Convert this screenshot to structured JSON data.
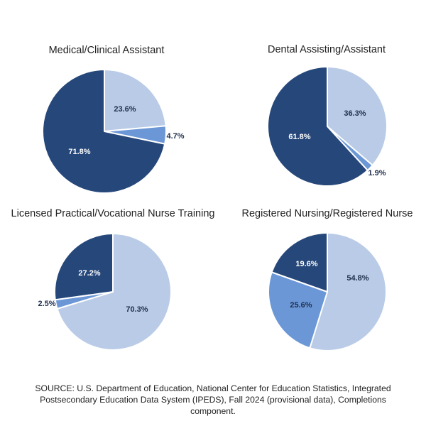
{
  "colors": {
    "dark": "#26477a",
    "light": "#b9cbe6",
    "mid": "#6b97d6"
  },
  "chart_data": [
    {
      "type": "pie",
      "title": "Medical/Clinical Assistant",
      "slices": [
        {
          "value": 23.6,
          "label": "23.6%",
          "color": "light"
        },
        {
          "value": 4.7,
          "label": "4.7%",
          "color": "mid"
        },
        {
          "value": 71.8,
          "label": "71.8%",
          "color": "dark"
        }
      ]
    },
    {
      "type": "pie",
      "title": "Dental Assisting/Assistant",
      "slices": [
        {
          "value": 36.3,
          "label": "36.3%",
          "color": "light"
        },
        {
          "value": 1.9,
          "label": "1.9%",
          "color": "mid"
        },
        {
          "value": 61.8,
          "label": "61.8%",
          "color": "dark"
        }
      ]
    },
    {
      "type": "pie",
      "title": "Licensed Practical/Vocational Nurse Training",
      "slices": [
        {
          "value": 70.3,
          "label": "70.3%",
          "color": "light"
        },
        {
          "value": 2.5,
          "label": "2.5%",
          "color": "mid"
        },
        {
          "value": 27.2,
          "label": "27.2%",
          "color": "dark"
        }
      ]
    },
    {
      "type": "pie",
      "title": "Registered Nursing/Registered Nurse",
      "slices": [
        {
          "value": 54.8,
          "label": "54.8%",
          "color": "light"
        },
        {
          "value": 25.6,
          "label": "25.6%",
          "color": "mid"
        },
        {
          "value": 19.6,
          "label": "19.6%",
          "color": "dark"
        }
      ]
    }
  ],
  "source": {
    "line1": "SOURCE: U.S. Department of Education, National Center for Education Statistics, Integrated",
    "line2": "Postsecondary Education Data System (IPEDS), Fall 2024 (provisional data), Completions component."
  }
}
